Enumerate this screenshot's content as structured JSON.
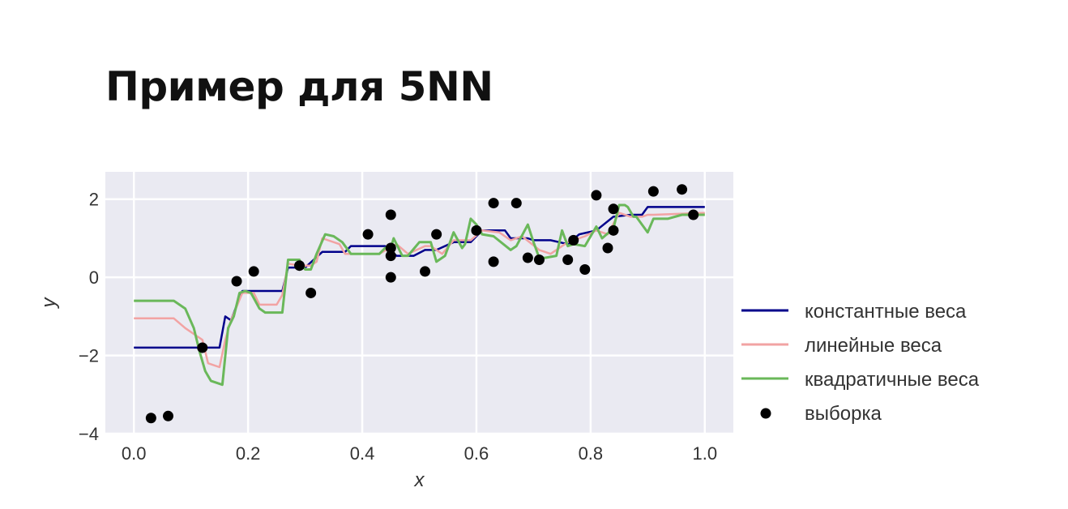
{
  "slide": {
    "title": "Пример для 5NN"
  },
  "colors": {
    "constant": "#00008b",
    "linear": "#f2a3a3",
    "quadratic": "#6ab85a",
    "points": "#000000",
    "plot_bg": "#eaeaf2",
    "grid": "#ffffff"
  },
  "chart_data": {
    "type": "line",
    "xlabel": "x",
    "ylabel": "y",
    "xlim": [
      -0.05,
      1.05
    ],
    "ylim": [
      -4.0,
      2.7
    ],
    "xticks": [
      0.0,
      0.2,
      0.4,
      0.6,
      0.8,
      1.0
    ],
    "xtick_labels": [
      "0.0",
      "0.2",
      "0.4",
      "0.6",
      "0.8",
      "1.0"
    ],
    "yticks": [
      2,
      0,
      -2,
      -4
    ],
    "ytick_labels": [
      "2",
      "0",
      "−2",
      "−4"
    ],
    "grid": true,
    "legend_position": "right",
    "legend": [
      "константные веса",
      "линейные веса",
      "квадратичные веса",
      "выборка"
    ],
    "series": [
      {
        "name": "константные веса",
        "kind": "line",
        "x": [
          0.0,
          0.15,
          0.16,
          0.17,
          0.19,
          0.26,
          0.27,
          0.3,
          0.33,
          0.37,
          0.38,
          0.44,
          0.46,
          0.49,
          0.51,
          0.53,
          0.56,
          0.59,
          0.61,
          0.65,
          0.66,
          0.69,
          0.7,
          0.73,
          0.76,
          0.78,
          0.81,
          0.84,
          0.87,
          0.89,
          0.9,
          0.91,
          1.0
        ],
        "y": [
          -1.8,
          -1.8,
          -1.0,
          -1.1,
          -0.35,
          -0.35,
          0.25,
          0.25,
          0.65,
          0.65,
          0.8,
          0.8,
          0.55,
          0.55,
          0.7,
          0.7,
          0.9,
          0.9,
          1.2,
          1.2,
          1.0,
          1.0,
          0.95,
          0.95,
          0.85,
          1.1,
          1.2,
          1.55,
          1.6,
          1.6,
          1.8,
          1.8,
          1.8
        ]
      },
      {
        "name": "линейные веса",
        "kind": "line",
        "x": [
          0.0,
          0.07,
          0.09,
          0.11,
          0.12,
          0.13,
          0.15,
          0.16,
          0.17,
          0.19,
          0.21,
          0.22,
          0.25,
          0.26,
          0.27,
          0.29,
          0.31,
          0.32,
          0.33,
          0.36,
          0.37,
          0.43,
          0.46,
          0.48,
          0.51,
          0.52,
          0.54,
          0.56,
          0.59,
          0.61,
          0.64,
          0.66,
          0.68,
          0.71,
          0.73,
          0.76,
          0.79,
          0.81,
          0.83,
          0.85,
          0.87,
          0.89,
          0.9,
          0.91,
          1.0
        ],
        "y": [
          -1.05,
          -1.05,
          -1.3,
          -1.5,
          -1.6,
          -2.2,
          -2.3,
          -1.6,
          -1.1,
          -0.4,
          -0.4,
          -0.7,
          -0.7,
          -0.45,
          0.35,
          0.3,
          0.3,
          0.4,
          1.0,
          0.85,
          0.6,
          0.6,
          0.85,
          0.6,
          0.8,
          0.8,
          0.6,
          0.95,
          0.95,
          1.2,
          1.15,
          0.95,
          1.05,
          0.7,
          0.6,
          0.9,
          1.05,
          1.2,
          1.1,
          1.65,
          1.55,
          1.55,
          1.6,
          1.6,
          1.65
        ]
      },
      {
        "name": "квадратичные веса",
        "kind": "line",
        "x": [
          0.0,
          0.07,
          0.09,
          0.105,
          0.115,
          0.125,
          0.135,
          0.145,
          0.155,
          0.165,
          0.175,
          0.185,
          0.195,
          0.205,
          0.22,
          0.23,
          0.26,
          0.27,
          0.29,
          0.3,
          0.31,
          0.32,
          0.335,
          0.35,
          0.365,
          0.38,
          0.43,
          0.44,
          0.45,
          0.455,
          0.47,
          0.48,
          0.5,
          0.52,
          0.53,
          0.545,
          0.56,
          0.575,
          0.58,
          0.59,
          0.6,
          0.61,
          0.63,
          0.66,
          0.67,
          0.69,
          0.7,
          0.71,
          0.72,
          0.74,
          0.75,
          0.76,
          0.77,
          0.79,
          0.81,
          0.82,
          0.84,
          0.85,
          0.86,
          0.865,
          0.875,
          0.88,
          0.9,
          0.91,
          0.935,
          0.96,
          1.0
        ],
        "y": [
          -0.6,
          -0.6,
          -0.8,
          -1.3,
          -1.9,
          -2.4,
          -2.65,
          -2.7,
          -2.75,
          -1.3,
          -1.0,
          -0.4,
          -0.35,
          -0.4,
          -0.8,
          -0.9,
          -0.9,
          0.45,
          0.45,
          0.2,
          0.2,
          0.6,
          1.1,
          1.05,
          0.9,
          0.6,
          0.6,
          0.75,
          0.75,
          1.0,
          0.55,
          0.55,
          0.9,
          0.9,
          0.4,
          0.55,
          1.15,
          0.75,
          0.85,
          1.5,
          1.35,
          1.1,
          1.05,
          0.7,
          0.8,
          1.35,
          0.9,
          0.5,
          0.5,
          0.55,
          1.2,
          0.8,
          0.85,
          0.8,
          1.3,
          1.0,
          1.25,
          1.85,
          1.85,
          1.8,
          1.55,
          1.55,
          1.15,
          1.5,
          1.5,
          1.6,
          1.6
        ]
      },
      {
        "name": "выборка",
        "kind": "scatter",
        "x": [
          0.03,
          0.06,
          0.12,
          0.18,
          0.21,
          0.29,
          0.31,
          0.41,
          0.45,
          0.45,
          0.45,
          0.45,
          0.51,
          0.53,
          0.6,
          0.63,
          0.63,
          0.67,
          0.69,
          0.71,
          0.76,
          0.77,
          0.79,
          0.81,
          0.83,
          0.84,
          0.84,
          0.91,
          0.96,
          0.98
        ],
        "y": [
          -3.6,
          -3.55,
          -1.8,
          -0.1,
          0.15,
          0.3,
          -0.4,
          1.1,
          1.6,
          0.75,
          0.55,
          0.0,
          0.15,
          1.1,
          1.2,
          1.9,
          0.4,
          1.9,
          0.5,
          0.45,
          0.45,
          0.95,
          0.2,
          2.1,
          0.75,
          1.2,
          1.75,
          2.2,
          2.25,
          1.6
        ]
      }
    ]
  }
}
